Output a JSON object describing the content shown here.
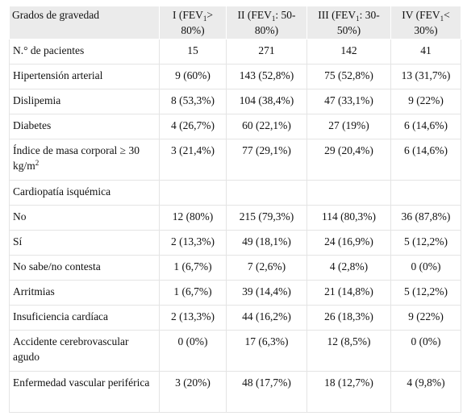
{
  "headers": [
    {
      "pre": "Grados de gravedad"
    },
    {
      "pre": "I (FEV",
      "sub": "1",
      "post": "> 80%)"
    },
    {
      "pre": "II (FEV",
      "sub": "1",
      "post": ": 50-80%)"
    },
    {
      "pre": "III (FEV",
      "sub": "1",
      "post": ": 30-50%)"
    },
    {
      "pre": "IV (FEV",
      "sub": "1",
      "post": "< 30%)"
    }
  ],
  "rows": [
    {
      "label": "N.° de pacientes",
      "values": [
        "15",
        "271",
        "142",
        "41"
      ]
    },
    {
      "label": "Hipertensión arterial",
      "values": [
        "9 (60%)",
        "143 (52,8%)",
        "75 (52,8%)",
        "13 (31,7%)"
      ]
    },
    {
      "label": "Dislipemia",
      "values": [
        "8 (53,3%)",
        "104 (38,4%)",
        "47 (33,1%)",
        "9 (22%)"
      ]
    },
    {
      "label": "Diabetes",
      "values": [
        "4 (26,7%)",
        "60 (22,1%)",
        "27 (19%)",
        "6 (14,6%)"
      ]
    },
    {
      "label": "Índice de masa corporal ≥ 30 kg/m",
      "label_sup": "2",
      "values": [
        "3 (21,4%)",
        "77 (29,1%)",
        "29 (20,4%)",
        "6 (14,6%)"
      ]
    },
    {
      "label": "Cardiopatía isquémica",
      "values": [
        "",
        "",
        "",
        ""
      ]
    },
    {
      "label": "No",
      "values": [
        "12 (80%)",
        "215 (79,3%)",
        "114 (80,3%)",
        "36 (87,8%)"
      ]
    },
    {
      "label": "Sí",
      "values": [
        "2 (13,3%)",
        "49 (18,1%)",
        "24 (16,9%)",
        "5 (12,2%)"
      ]
    },
    {
      "label": "No sabe/no contesta",
      "values": [
        "1 (6,7%)",
        "7 (2,6%)",
        "4 (2,8%)",
        "0 (0%)"
      ]
    },
    {
      "label": "Arritmias",
      "values": [
        "1 (6,7%)",
        "39 (14,4%)",
        "21 (14,8%)",
        "5 (12,2%)"
      ]
    },
    {
      "label": "Insuficiencia cardíaca",
      "values": [
        "2 (13,3%)",
        "44 (16,2%)",
        "26 (18,3%)",
        "9 (22%)"
      ]
    },
    {
      "label": "Accidente cerebrovascular agudo",
      "values": [
        "0 (0%)",
        "17 (6,3%)",
        "12 (8,5%)",
        "0 (0%)"
      ]
    },
    {
      "label": "Enfermedad vascular periférica",
      "values": [
        "3 (20%)",
        "48 (17,7%)",
        "18 (12,7%)",
        "4 (9,8%)"
      ]
    }
  ]
}
